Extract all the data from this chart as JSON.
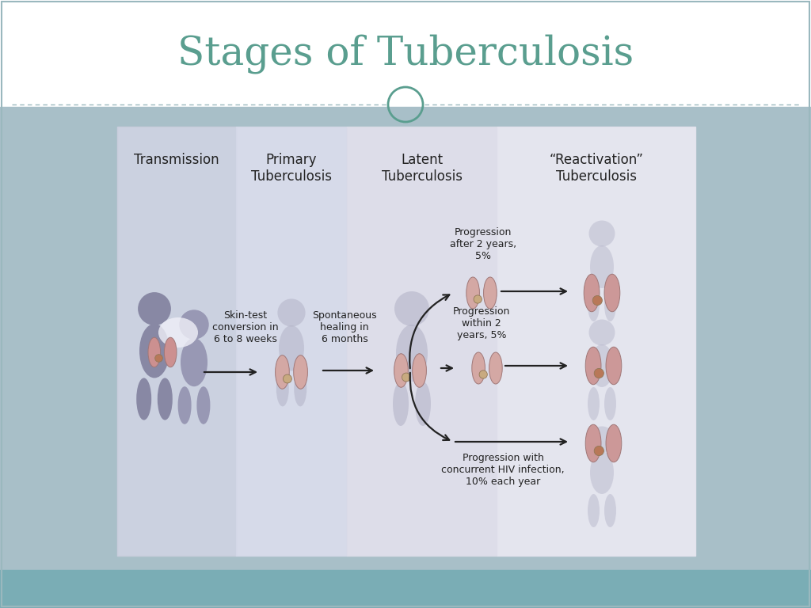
{
  "title": "Stages of Tuberculosis",
  "title_color": "#5a9e8f",
  "title_fontsize": 36,
  "bg_top_color": "#ffffff",
  "bg_content_color": "#a8bfc8",
  "footer_color": "#7aadb5",
  "divider_color": "#9ab8be",
  "circle_color": "#5a9e8f",
  "panel_bg": "#dde2ec",
  "col1_bg": "#c8cede",
  "col2_bg": "#d4d8e8",
  "col3_bg": "#dcdce8",
  "col4_bg": "#e4e4ee",
  "col_headers": [
    "Transmission",
    "Primary\nTuberculosis",
    "Latent\nTuberculosis",
    "“Reactivation”\nTuberculosis"
  ],
  "header_fontsize": 12,
  "annotation_fontsize": 9,
  "arrow_color": "#222222",
  "lung_color": "#d8a8a8",
  "lung_dark": "#c89090",
  "spot_color": "#c8aa80",
  "body_color_1": "#9898b0",
  "body_color_2": "#a8a8c0",
  "body_color_3": "#b0b0c8",
  "text_color": "#222222"
}
